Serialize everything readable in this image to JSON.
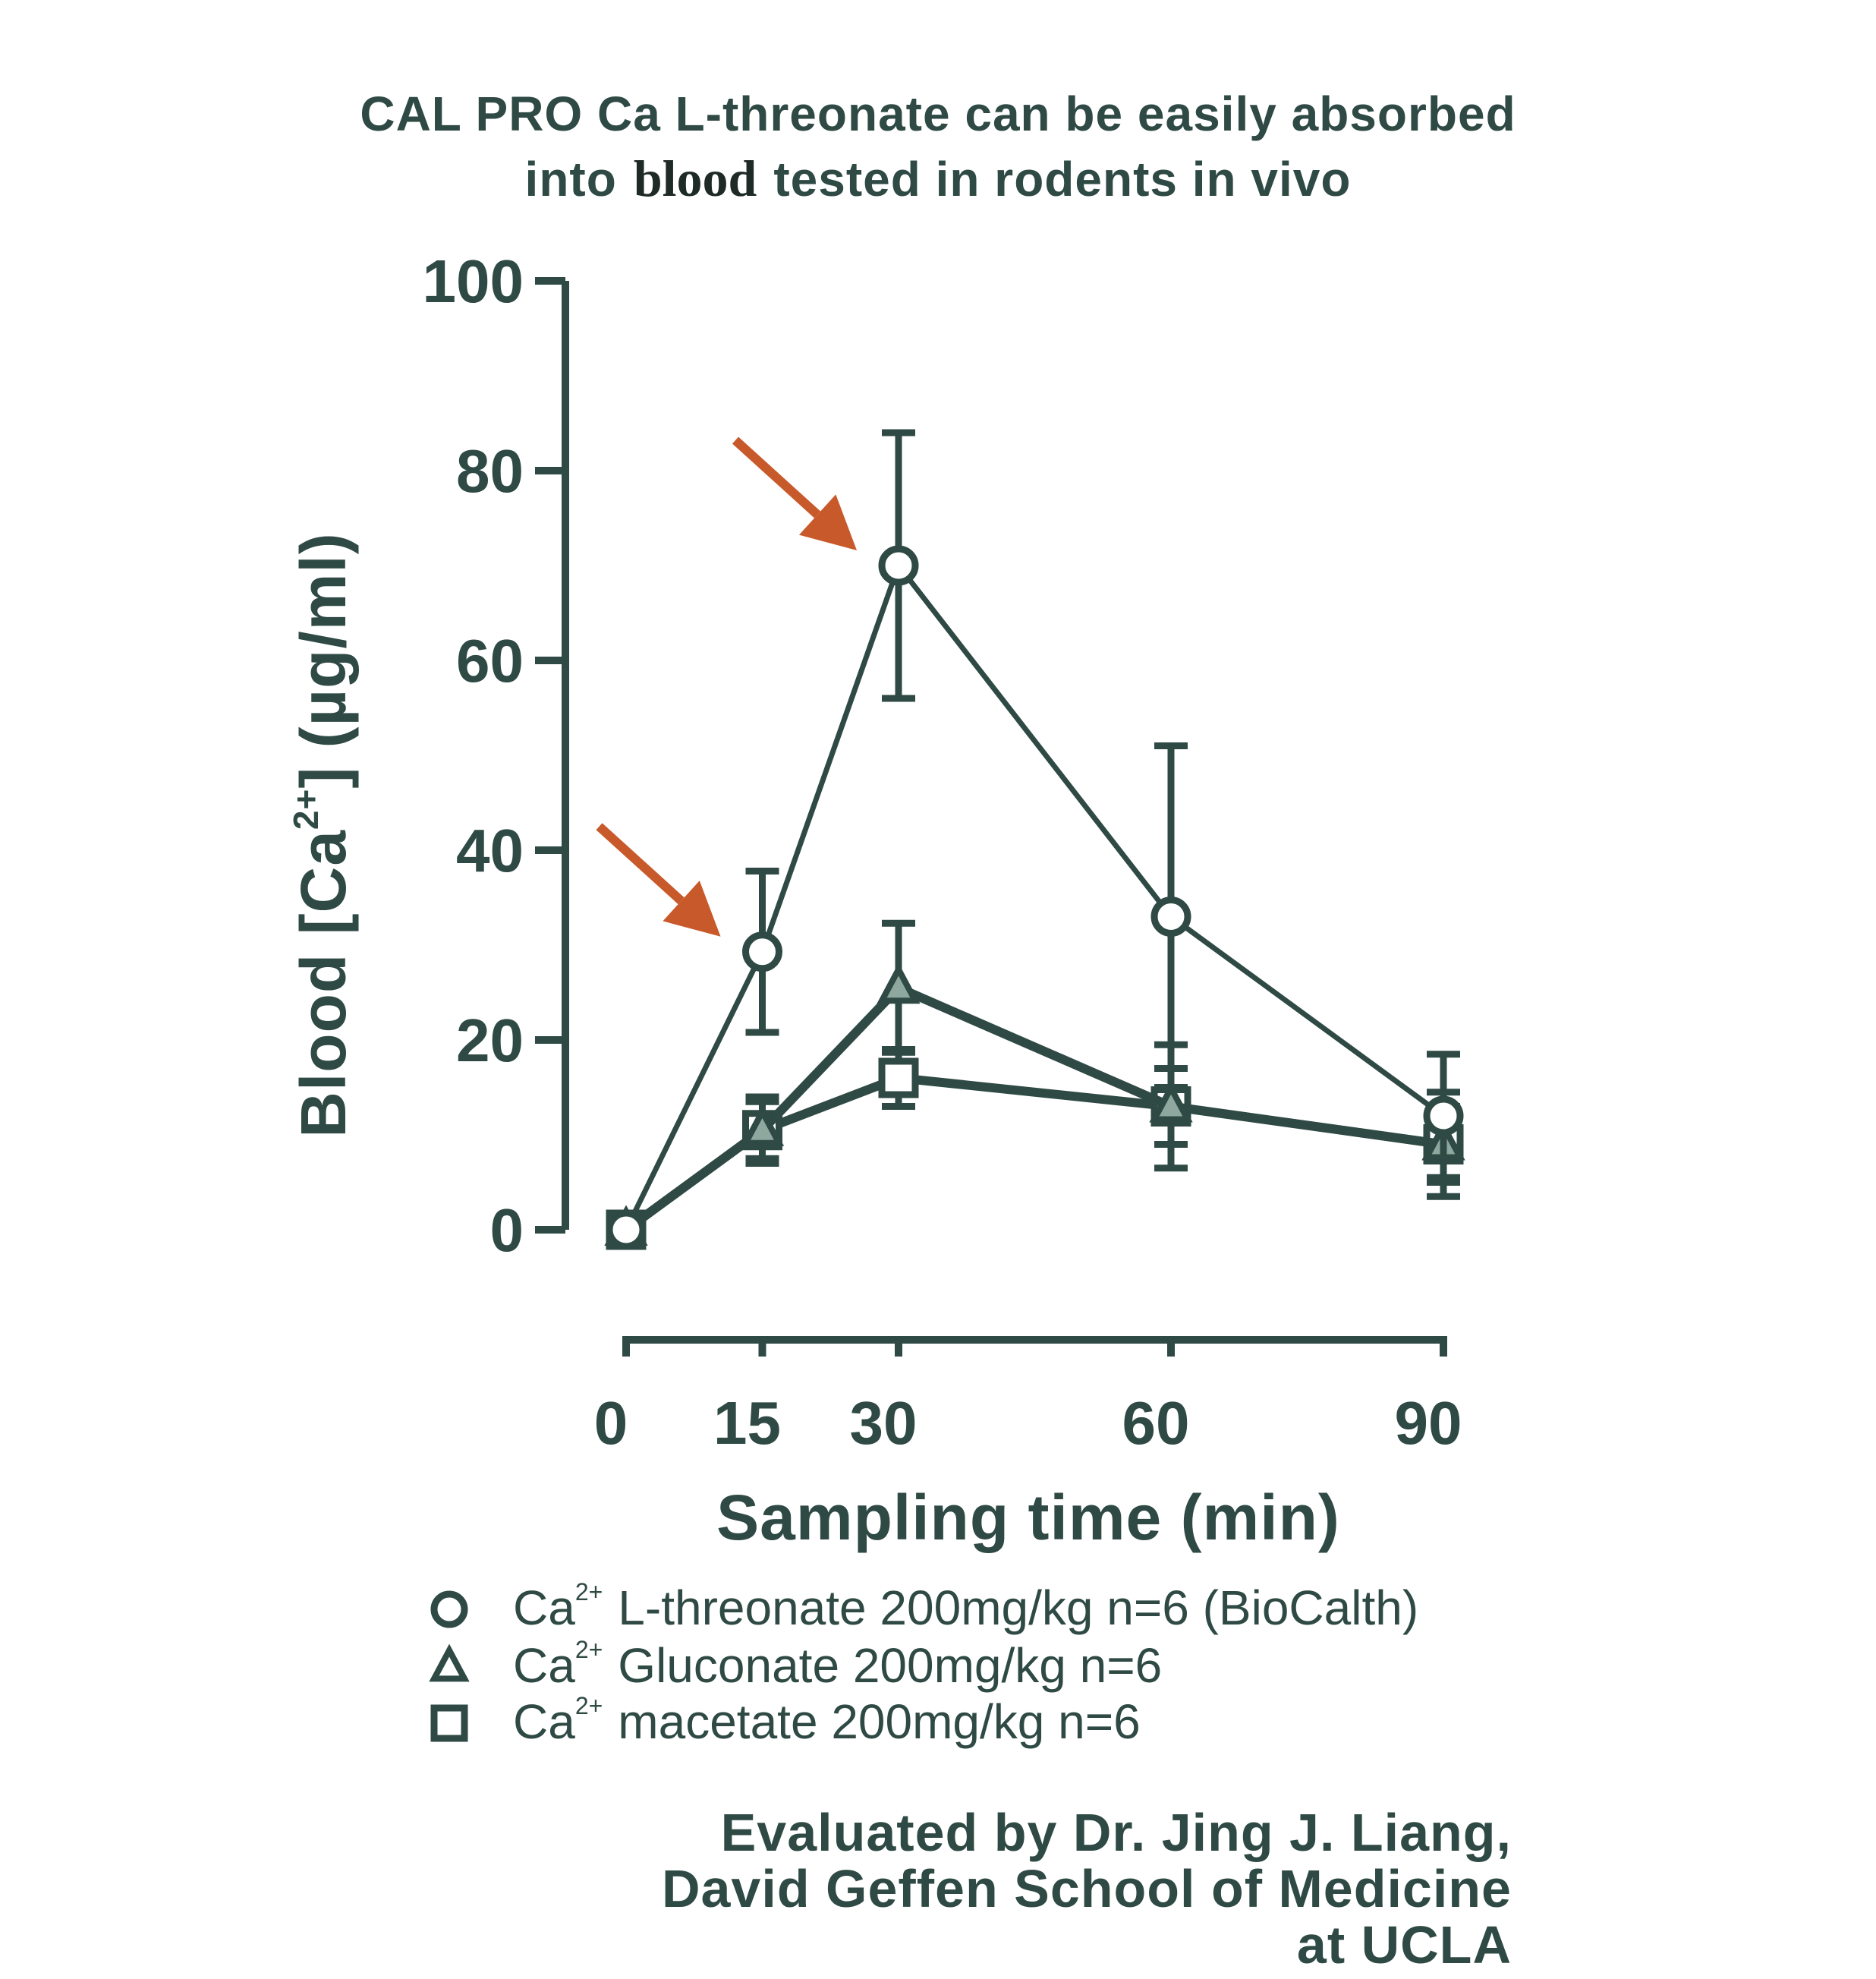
{
  "title": {
    "line1": "CAL PRO Ca L-threonate can be easily absorbed",
    "line2_pre": "into",
    "line2_word": "blood",
    "line2_post": "tested in rodents in vivo"
  },
  "credit": {
    "line1": "Evaluated by Dr. Jing J. Liang,",
    "line2": "David Geffen School of Medicine",
    "line3": "at UCLA"
  },
  "colors": {
    "ink": "#2f4a44",
    "arrow": "#c8592a",
    "triangle_fill": "#8fa89f"
  },
  "chart_data": {
    "type": "line",
    "x": [
      0,
      15,
      30,
      60,
      90
    ],
    "xlabel": "Sampling time (min)",
    "ylabel_pre": "Blood [Ca",
    "ylabel_sup": "2+",
    "ylabel_post": "] (µg/ml)",
    "xlim": [
      0,
      90
    ],
    "ylim": [
      0,
      100
    ],
    "x_ticks": [
      0,
      15,
      30,
      60,
      90
    ],
    "y_ticks": [
      0,
      20,
      40,
      60,
      80,
      100
    ],
    "grid": false,
    "legend_position": "bottom",
    "series": [
      {
        "name": "L-threonate 200mg/kg n=6 (BioCalth)",
        "legend_prefix": "Ca",
        "legend_sup": "2+",
        "marker": "circle",
        "values": [
          0,
          29.3,
          70,
          33,
          12
        ],
        "error": [
          0,
          8.5,
          14,
          18,
          6.5
        ]
      },
      {
        "name": "Gluconate 200mg/kg n=6",
        "legend_prefix": "Ca",
        "legend_sup": "2+",
        "marker": "triangle",
        "values": [
          0,
          10.5,
          25.5,
          13,
          9
        ],
        "error": [
          0,
          3.5,
          6.8,
          6.5,
          5.5
        ]
      },
      {
        "name": "macetate 200mg/kg n=6",
        "legend_prefix": "Ca",
        "legend_sup": "2+",
        "marker": "square",
        "values": [
          0,
          10.5,
          16,
          13,
          9
        ],
        "error": [
          0,
          3,
          3,
          4,
          4
        ]
      }
    ],
    "annotations": [
      {
        "type": "arrow",
        "points_to": {
          "x": 30,
          "y": 70
        }
      },
      {
        "type": "arrow",
        "points_to": {
          "x": 15,
          "y": 29.3
        }
      }
    ]
  }
}
